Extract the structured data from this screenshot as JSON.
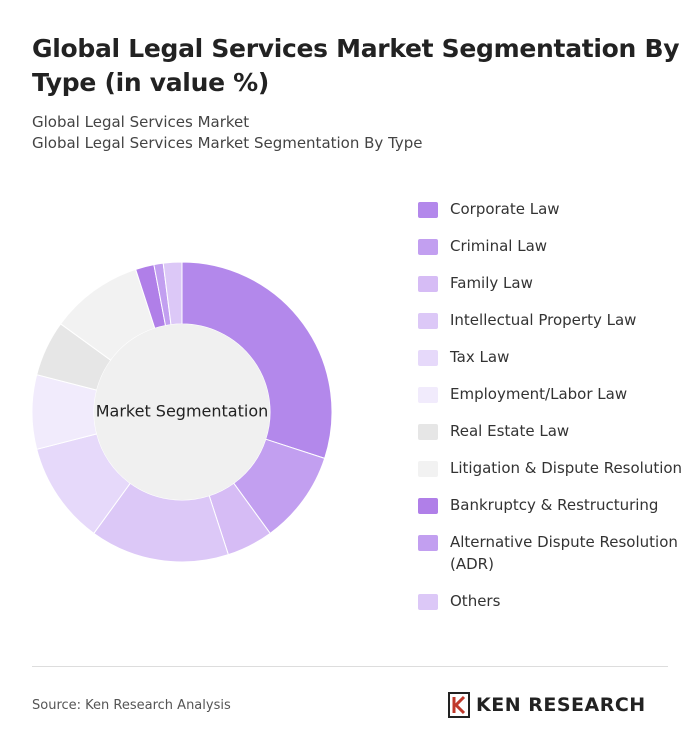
{
  "chart_data": {
    "type": "donut",
    "title": "Global Legal Services Market Segmentation By Type (in value %)",
    "subtitle": [
      "Global Legal Services Market",
      "Global Legal Services Market Segmentation By Type"
    ],
    "center_label": "Market Segmentation",
    "categories": [
      "Corporate Law",
      "Criminal Law",
      "Family Law",
      "Intellectual Property Law",
      "Tax Law",
      "Employment/Labor Law",
      "Real Estate Law",
      "Litigation & Dispute Resolution",
      "Bankruptcy & Restructuring",
      "Alternative Dispute Resolution (ADR)",
      "Others"
    ],
    "values": [
      30,
      10,
      5,
      15,
      11,
      8,
      6,
      10,
      2,
      1,
      2
    ],
    "colors": [
      "#b388eb",
      "#c29ff0",
      "#d6bcf5",
      "#dcc8f7",
      "#e6d9fa",
      "#f1ebfc",
      "#e6e6e6",
      "#f2f2f2",
      "#b07fe8",
      "#c29ff0",
      "#dcc8f7"
    ],
    "source": "Source: Ken Research Analysis",
    "brand": "KEN RESEARCH"
  }
}
